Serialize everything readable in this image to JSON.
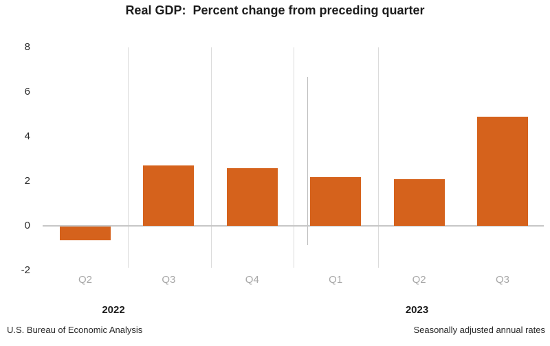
{
  "title": "Real GDP:  Percent change from preceding quarter",
  "footer": {
    "source_note": "U.S. Bureau of Economic Analysis",
    "rate_note": "Seasonally adjusted annual rates"
  },
  "chart_data": {
    "type": "bar",
    "title": "Real GDP:  Percent change from preceding quarter",
    "categories": [
      "Q2",
      "Q3",
      "Q4",
      "Q1",
      "Q2",
      "Q3"
    ],
    "category_years": [
      "2022",
      "2022",
      "2022",
      "2023",
      "2023",
      "2023"
    ],
    "values": [
      -0.6,
      2.7,
      2.6,
      2.2,
      2.1,
      4.9
    ],
    "year_labels": [
      "2022",
      "2023"
    ],
    "y_ticks": [
      8,
      6,
      4,
      2,
      0,
      -2
    ],
    "ylim": [
      -2,
      8
    ],
    "xlabel": "",
    "ylabel": "",
    "legend": "none",
    "grid": "vertical-category-separators-and-year-divider",
    "bar_color": "#D5621C",
    "quarter_label_color": "#A7A7A7",
    "axis_text_color": "#2A2A2A",
    "zero_line_color": "#C6C6C6",
    "separator_color": "#DBDBDB",
    "year_divider_color": "#BEBEBE"
  }
}
